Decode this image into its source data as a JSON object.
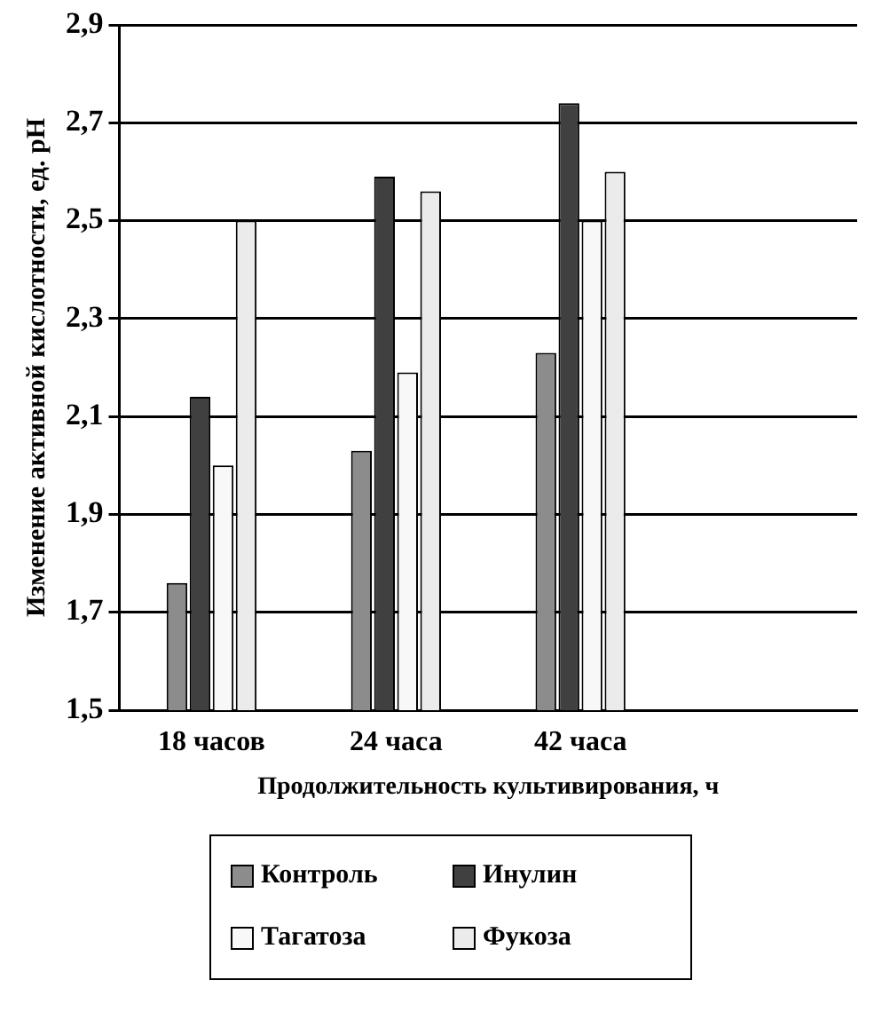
{
  "chart_data": {
    "type": "bar",
    "xlabel": "Продолжительность культивирования, ч",
    "ylabel": "Изменение активной кислотности, ед. pH",
    "categories": [
      "18 часов",
      "24 часа",
      "42 часа",
      null
    ],
    "series": [
      {
        "name": "Контроль",
        "color": "#8c8c8c",
        "values": [
          1.76,
          2.03,
          2.23,
          null
        ]
      },
      {
        "name": "Инулин",
        "color": "#404040",
        "values": [
          2.14,
          2.59,
          2.74,
          null
        ]
      },
      {
        "name": "Тагатоза",
        "color": "#f8f8f8",
        "values": [
          2.0,
          2.19,
          2.5,
          null
        ]
      },
      {
        "name": "Фукоза",
        "color": "#ebebeb",
        "values": [
          2.5,
          2.56,
          2.6,
          null
        ]
      }
    ],
    "ylim": [
      1.5,
      2.9
    ],
    "yticks": [
      {
        "value": 1.5,
        "label": "1,5"
      },
      {
        "value": 1.7,
        "label": "1,7"
      },
      {
        "value": 1.9,
        "label": "1,9"
      },
      {
        "value": 2.1,
        "label": "2,1"
      },
      {
        "value": 2.3,
        "label": "2,3"
      },
      {
        "value": 2.5,
        "label": "2,5"
      },
      {
        "value": 2.7,
        "label": "2,7"
      },
      {
        "value": 2.9,
        "label": "2,9"
      }
    ],
    "grid": "y",
    "legend": "bottom"
  }
}
